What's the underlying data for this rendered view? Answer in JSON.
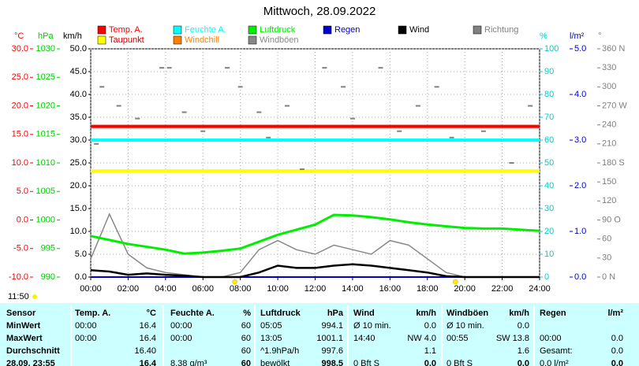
{
  "chart_data": {
    "type": "line",
    "title": "Mittwoch, 28.09.2022",
    "x": [
      0,
      1,
      2,
      3,
      4,
      5,
      6,
      7,
      8,
      9,
      10,
      11,
      12,
      13,
      14,
      15,
      16,
      17,
      18,
      19,
      20,
      21,
      22,
      23,
      24
    ],
    "xlim": [
      0,
      24
    ],
    "xticks": [
      {
        "value": 0,
        "label": "00:00"
      },
      {
        "value": 2,
        "label": "02:00"
      },
      {
        "value": 4,
        "label": "04:00"
      },
      {
        "value": 6,
        "label": "06:00"
      },
      {
        "value": 8,
        "label": "08:00"
      },
      {
        "value": 10,
        "label": "10:00"
      },
      {
        "value": 12,
        "label": "12:00"
      },
      {
        "value": 14,
        "label": "14:00"
      },
      {
        "value": 16,
        "label": "16:00"
      },
      {
        "value": 18,
        "label": "18:00"
      },
      {
        "value": 20,
        "label": "20:00"
      },
      {
        "value": 22,
        "label": "22:00"
      },
      {
        "value": 24,
        "label": "24:00"
      }
    ],
    "grid": true,
    "axes": [
      {
        "id": "temp",
        "unit": "°C",
        "color": "#ff0000",
        "lim": [
          -10,
          30
        ],
        "ticks": [
          {
            "value": 30,
            "label": "30.0"
          },
          {
            "value": 25,
            "label": "25.0"
          },
          {
            "value": 20,
            "label": "20.0"
          },
          {
            "value": 15,
            "label": "15.0"
          },
          {
            "value": 10,
            "label": "10.0"
          },
          {
            "value": 5,
            "label": "5.0"
          },
          {
            "value": 0,
            "label": "0.0"
          },
          {
            "value": -5,
            "label": "-5.0"
          },
          {
            "value": -10,
            "label": "-10.0"
          }
        ]
      },
      {
        "id": "press",
        "unit": "hPa",
        "color": "#00cc00",
        "lim": [
          990,
          1030
        ],
        "ticks": [
          1030,
          1025,
          1020,
          1015,
          1010,
          1005,
          1000,
          995,
          990
        ]
      },
      {
        "id": "wind",
        "unit": "km/h",
        "color": "#000000",
        "lim": [
          0,
          50
        ],
        "ticks": [
          {
            "value": 50,
            "label": "50.0"
          },
          {
            "value": 45,
            "label": "45.0"
          },
          {
            "value": 40,
            "label": "40.0"
          },
          {
            "value": 35,
            "label": "35.0"
          },
          {
            "value": 30,
            "label": "30.0"
          },
          {
            "value": 25,
            "label": "25.0"
          },
          {
            "value": 20,
            "label": "20.0"
          },
          {
            "value": 15,
            "label": "15.0"
          },
          {
            "value": 10,
            "label": "10.0"
          },
          {
            "value": 5,
            "label": "5.0"
          },
          {
            "value": 0,
            "label": "0.0"
          }
        ]
      },
      {
        "id": "hum",
        "unit": "%",
        "color": "#00cccc",
        "lim": [
          0,
          100
        ],
        "ticks": [
          100,
          90,
          80,
          70,
          60,
          50,
          40,
          30,
          20,
          10,
          0
        ]
      },
      {
        "id": "rain",
        "unit": "l/m²",
        "color": "#0000cc",
        "lim": [
          0,
          5
        ],
        "ticks": [
          {
            "value": 5,
            "label": "5.0"
          },
          {
            "value": 4,
            "label": "4.0"
          },
          {
            "value": 3,
            "label": "3.0"
          },
          {
            "value": 2,
            "label": "2.0"
          },
          {
            "value": 1,
            "label": "1.0"
          },
          {
            "value": 0,
            "label": "0.0"
          }
        ]
      },
      {
        "id": "dir",
        "unit": "°",
        "color": "#808080",
        "lim": [
          0,
          360
        ],
        "ticks": [
          {
            "value": 360,
            "label": "360 N"
          },
          330,
          300,
          {
            "value": 270,
            "label": "270 W"
          },
          240,
          210,
          {
            "value": 180,
            "label": "180 S"
          },
          150,
          120,
          {
            "value": 90,
            "label": "90 O"
          },
          60,
          30,
          {
            "value": 0,
            "label": "0 N"
          }
        ]
      }
    ],
    "series": [
      {
        "name": "Temp. A.",
        "color": "#ff0000",
        "axis": "temp",
        "values": [
          16.4,
          16.4,
          16.4,
          16.4,
          16.4,
          16.4,
          16.4,
          16.4,
          16.4,
          16.4,
          16.4,
          16.4,
          16.4,
          16.4,
          16.4,
          16.4,
          16.4,
          16.4,
          16.4,
          16.4,
          16.4,
          16.4,
          16.4,
          16.4,
          16.4
        ]
      },
      {
        "name": "Feuchte A.",
        "color": "#00ffff",
        "axis": "hum",
        "values": [
          60,
          60,
          60,
          60,
          60,
          60,
          60,
          60,
          60,
          60,
          60,
          60,
          60,
          60,
          60,
          60,
          60,
          60,
          60,
          60,
          60,
          60,
          60,
          60,
          60
        ]
      },
      {
        "name": "Luftdruck",
        "color": "#00ee00",
        "axis": "press",
        "values": [
          997.2,
          996.5,
          995.8,
          995.3,
          994.8,
          994.1,
          994.3,
          994.6,
          995.0,
          996.2,
          997.4,
          998.3,
          999.2,
          1000.9,
          1000.8,
          1000.5,
          1000.1,
          999.6,
          999.2,
          998.9,
          998.6,
          998.5,
          998.5,
          998.3,
          998.1
        ]
      },
      {
        "name": "Regen",
        "color": "#0000cc",
        "axis": "rain",
        "values": [
          0,
          0,
          0,
          0,
          0,
          0,
          0,
          0,
          0,
          0,
          0,
          0,
          0,
          0,
          0,
          0,
          0,
          0,
          0,
          0,
          0,
          0,
          0,
          0,
          0
        ]
      },
      {
        "name": "Wind",
        "color": "#000000",
        "axis": "wind",
        "values": [
          1.5,
          1.2,
          0.5,
          0.8,
          0.5,
          0.3,
          0,
          0,
          0,
          1.0,
          2.5,
          2.0,
          2.0,
          2.5,
          2.8,
          2.5,
          2.0,
          1.5,
          1.0,
          0.2,
          0,
          0,
          0,
          0,
          0
        ]
      },
      {
        "name": "Richtung",
        "color": "#808080",
        "axis": "dir",
        "type": "scatter",
        "x": [
          0.3,
          0.6,
          1.5,
          2.5,
          3.8,
          4.2,
          5.0,
          6.0,
          7.3,
          8.0,
          9.0,
          9.5,
          10.5,
          11.3,
          12.5,
          13.5,
          14.0,
          15.5,
          16.5,
          17.5,
          18.5,
          19.3,
          21.0,
          22.5,
          23.5
        ],
        "values": [
          210,
          300,
          270,
          250,
          330,
          330,
          260,
          230,
          330,
          300,
          260,
          220,
          270,
          170,
          330,
          300,
          250,
          330,
          230,
          270,
          300,
          220,
          230,
          180,
          270
        ]
      },
      {
        "name": "Taupunkt",
        "color": "#ffff00",
        "axis": "temp",
        "values": [
          8.6,
          8.6,
          8.6,
          8.6,
          8.6,
          8.6,
          8.6,
          8.6,
          8.6,
          8.6,
          8.6,
          8.6,
          8.6,
          8.6,
          8.6,
          8.6,
          8.6,
          8.6,
          8.6,
          8.6,
          8.6,
          8.6,
          8.6,
          8.6,
          8.6
        ]
      },
      {
        "name": "Windchill",
        "color": "#ff8000",
        "axis": "temp",
        "values": [
          16.4,
          16.4,
          16.4,
          16.4,
          16.4,
          16.4,
          16.4,
          16.4,
          16.4,
          16.4,
          16.4,
          16.4,
          16.4,
          16.4,
          16.4,
          16.4,
          16.4,
          16.4,
          16.4,
          16.4,
          16.4,
          16.4,
          16.4,
          16.4,
          16.4
        ]
      },
      {
        "name": "Windböen",
        "color": "#888888",
        "axis": "wind",
        "values": [
          4,
          13.8,
          5,
          2,
          1,
          0.5,
          0,
          0,
          1,
          6,
          8,
          6,
          5,
          7,
          6,
          5,
          8,
          7,
          4,
          1,
          0,
          0,
          0,
          0,
          0
        ]
      }
    ],
    "sunrise": 7.7,
    "sunset": 19.5,
    "day_length": "11:50"
  },
  "table": {
    "header": [
      "Sensor",
      "Temp. A.",
      "°C",
      "Feuchte A.",
      "%",
      "Luftdruck",
      "hPa",
      "Wind",
      "km/h",
      "Windböen",
      "km/h",
      "Regen",
      "l/m²"
    ],
    "rows": [
      [
        "MinWert",
        "00:00",
        "16.4",
        "00:00",
        "60",
        "05:05",
        "994.1",
        "Ø 10 min.",
        "0.0",
        "Ø 10 min.",
        "0.0",
        null,
        null
      ],
      [
        "MaxWert",
        "00:00",
        "16.4",
        "00:00",
        "60",
        "13:05",
        "1001.1",
        "14:40",
        "NW 4.0",
        "00:55",
        "SW 13.8",
        "00:00",
        "0.0"
      ],
      [
        "Durchschnitt",
        null,
        "16.40",
        null,
        "60",
        "^1.9hPa/h",
        "997.6",
        null,
        "1.1",
        null,
        "1.6",
        "Gesamt:",
        "0.0"
      ],
      [
        "28.09. 23:55",
        null,
        "16.4",
        "8.38 g/m³",
        "60",
        "bewölkt",
        "998.5",
        "0 Bft S",
        "0.0",
        "0 Bft S",
        "0.0",
        "0.0 l/m²",
        "0.0"
      ]
    ]
  }
}
